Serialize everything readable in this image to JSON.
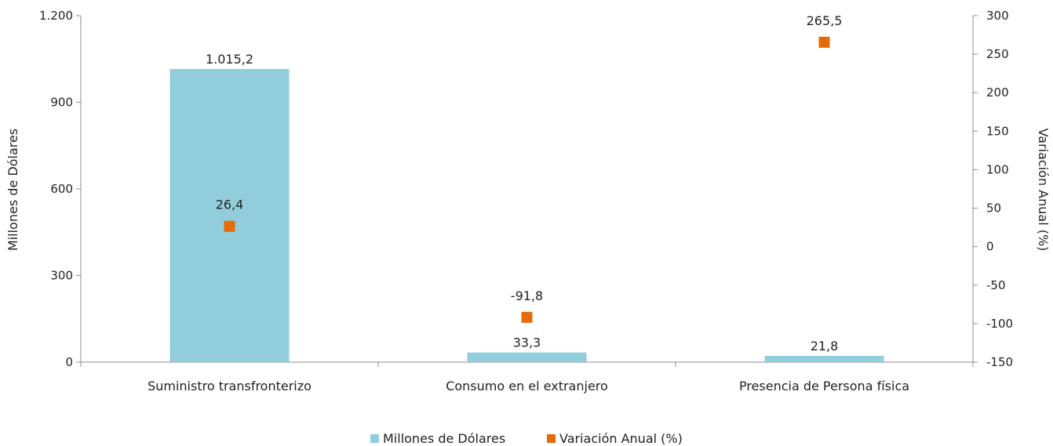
{
  "chart_data": {
    "type": "bar",
    "categories": [
      "Suministro transfronterizo",
      "Consumo en el extranjero",
      "Presencia de Persona física"
    ],
    "series": [
      {
        "name": "Millones de Dólares",
        "type": "bar",
        "axis": "left",
        "color": "#92CDDC",
        "values": [
          1015.2,
          33.3,
          21.8
        ],
        "labels": [
          "1.015,2",
          "33,3",
          "21,8"
        ]
      },
      {
        "name": "Variación Anual (%)",
        "type": "scatter",
        "axis": "right",
        "color": "#E36C09",
        "values": [
          26.4,
          -91.8,
          265.5
        ],
        "labels": [
          "26,4",
          "-91,8",
          "265,5"
        ]
      }
    ],
    "ylabel": "Millones de Dólares",
    "y2label": "Variación Anual (%)",
    "ylim": [
      0,
      1200
    ],
    "y2lim": [
      -150,
      300
    ],
    "yticks": [
      0,
      300,
      600,
      900,
      1200
    ],
    "yticklabels": [
      "0",
      "300",
      "600",
      "900",
      "1.200"
    ],
    "y2ticks": [
      -150,
      -100,
      -50,
      0,
      50,
      100,
      150,
      200,
      250,
      300
    ],
    "y2ticklabels": [
      "-150",
      "-100",
      "-50",
      "0",
      "50",
      "100",
      "150",
      "200",
      "250",
      "300"
    ],
    "grid": false,
    "legend_position": "bottom"
  }
}
